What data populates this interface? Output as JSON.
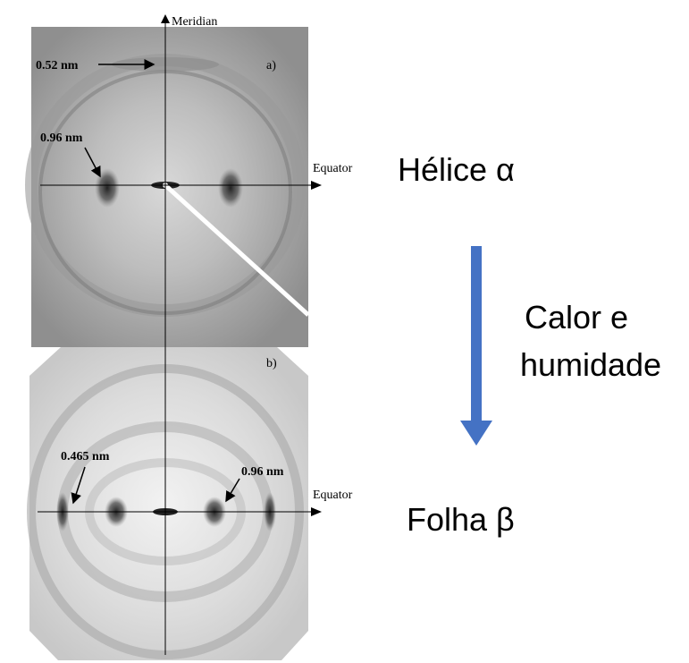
{
  "figure": {
    "panel_a": {
      "meridian": "Meridian",
      "label": "a)",
      "spacing_top": "0.52 nm",
      "spacing_equator": "0.96 nm",
      "equator": "Equator"
    },
    "panel_b": {
      "label": "b)",
      "spacing_outer": "0.465 nm",
      "spacing_inner": "0.96 nm",
      "equator": "Equator"
    },
    "state_top": "Hélice α",
    "transition": [
      "Calor e",
      "humidade"
    ],
    "state_bottom": "Folha β"
  }
}
